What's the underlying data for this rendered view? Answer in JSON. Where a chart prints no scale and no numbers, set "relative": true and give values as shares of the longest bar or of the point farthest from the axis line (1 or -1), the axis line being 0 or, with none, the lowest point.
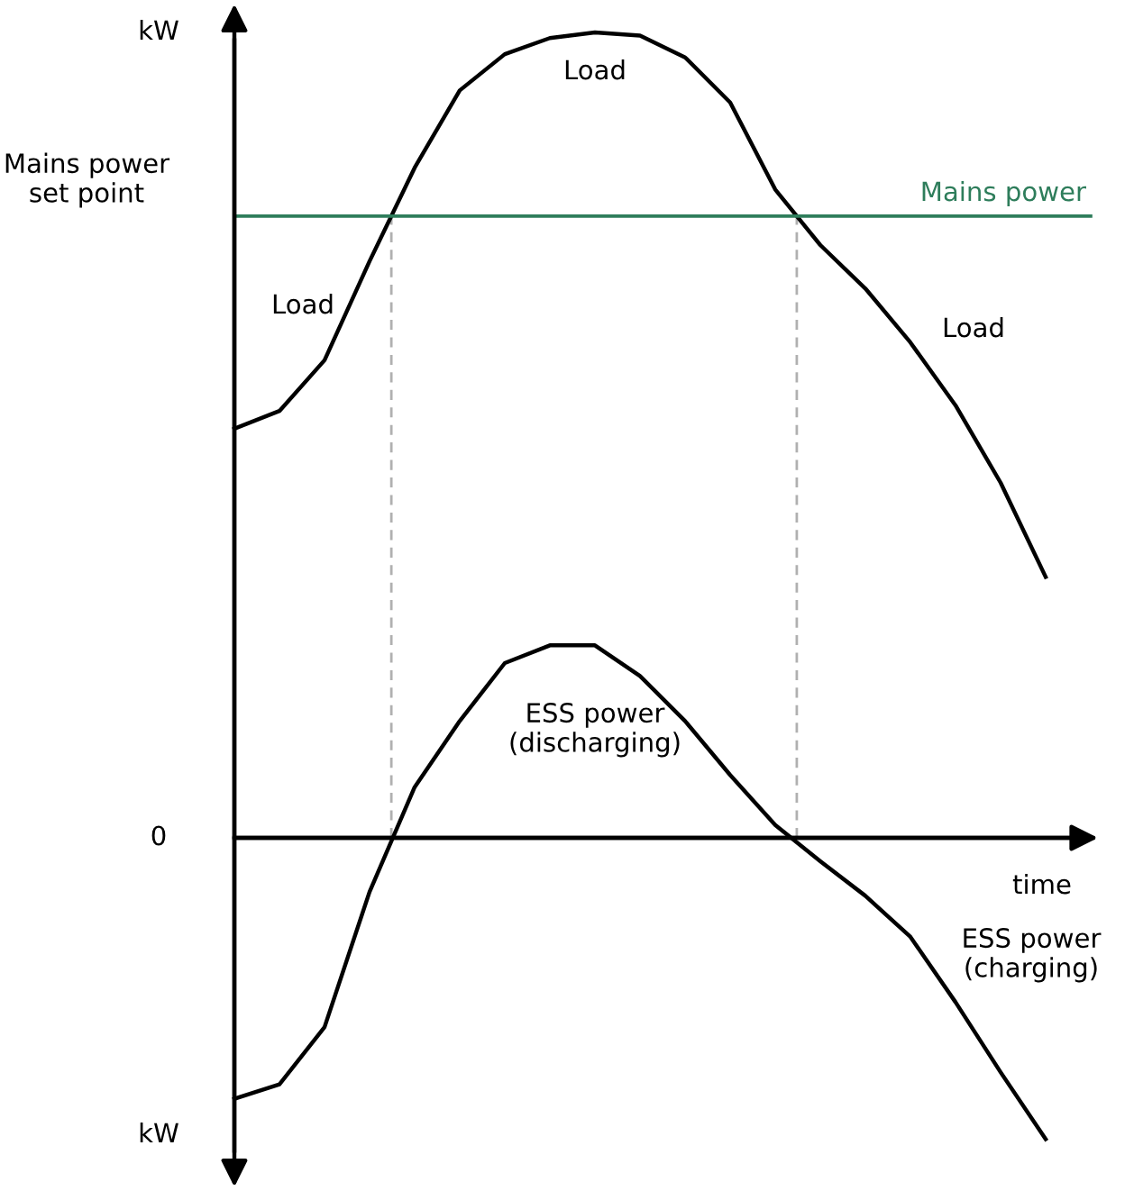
{
  "chart_data": {
    "type": "line",
    "relative": true,
    "legend": false,
    "marker": "none",
    "line_style": "solid",
    "categories": [
      null,
      null,
      null,
      null,
      null,
      null,
      null,
      null,
      null,
      null,
      null,
      null,
      null,
      null,
      null,
      null,
      null,
      null,
      null,
      null
    ],
    "series": [
      {
        "color": "#000000",
        "values": [
          0.508,
          0.53,
          0.593,
          0.716,
          0.832,
          0.928,
          0.973,
          0.993,
          1.0,
          0.996,
          0.969,
          0.913,
          0.805,
          0.736,
          0.682,
          0.615,
          0.537,
          0.441,
          0.324,
          null
        ]
      },
      {
        "color": "#000000",
        "values": [
          -0.324,
          -0.306,
          -0.235,
          -0.067,
          0.063,
          0.145,
          0.217,
          0.239,
          0.239,
          0.201,
          0.145,
          0.078,
          0.016,
          -0.029,
          -0.072,
          -0.123,
          -0.204,
          -0.291,
          -0.374,
          null
        ]
      },
      {
        "name": "Mains power",
        "color": "#2e7d5b",
        "values": [
          0.772,
          0.772,
          0.772,
          0.772,
          0.772,
          0.772,
          0.772,
          0.772,
          0.772,
          0.772,
          0.772,
          0.772,
          0.772,
          0.772,
          0.772,
          0.772,
          0.772,
          0.772,
          0.772,
          0.772
        ]
      }
    ],
    "annotations": [
      "kW",
      "Mains power\nset point",
      "0",
      "time",
      "kW",
      "Load",
      "Load",
      "Load",
      "ESS power\n(discharging)",
      "ESS power\n(charging)"
    ]
  }
}
